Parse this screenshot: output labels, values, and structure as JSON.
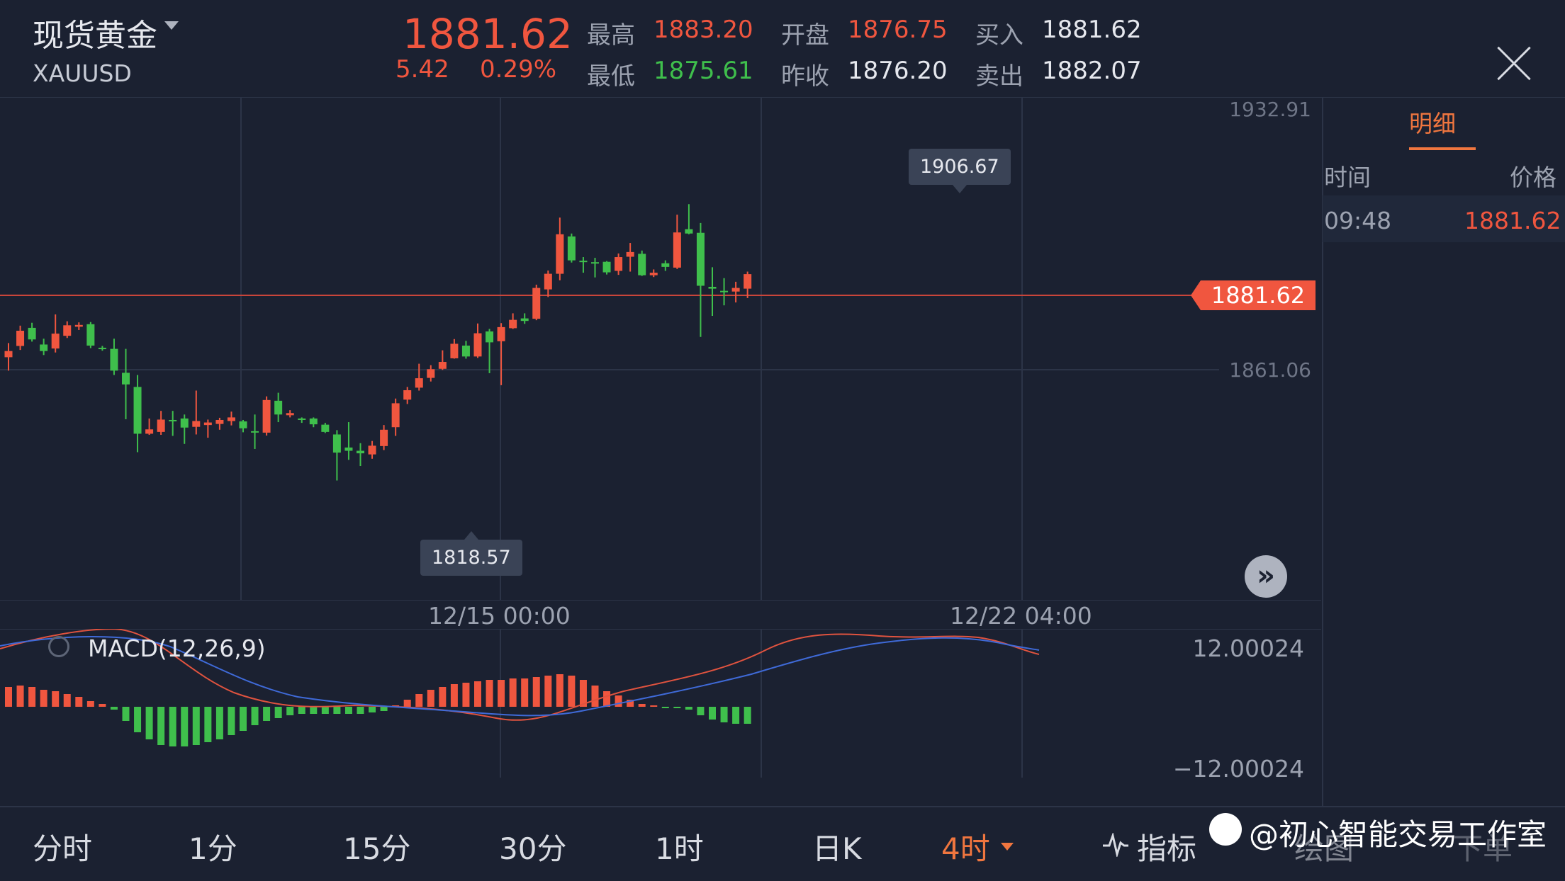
{
  "header": {
    "title": "现货黄金",
    "symbol": "XAUUSD",
    "price": "1881.62",
    "change": "5.42",
    "change_pct": "0.29%",
    "high_label": "最高",
    "high": "1883.20",
    "low_label": "最低",
    "low": "1875.61",
    "open_label": "开盘",
    "open": "1876.75",
    "prev_close_label": "昨收",
    "prev_close": "1876.20",
    "buy_label": "买入",
    "buy": "1881.62",
    "sell_label": "卖出",
    "sell": "1882.07"
  },
  "main_chart": {
    "y_top_label": "1932.91",
    "y_mid_label": "1861.06",
    "x_labels": [
      "12/15 00:00",
      "12/22 04:00"
    ],
    "max_tag": "1906.67",
    "min_tag": "1818.57",
    "current_price_tag": "1881.62"
  },
  "macd": {
    "label": "MACD(12,26,9)",
    "y_top": "12.00024",
    "y_bottom": "−12.00024"
  },
  "side_panel": {
    "tab": "明细",
    "col_time": "时间",
    "col_price": "价格",
    "rows": [
      {
        "time": "09:48",
        "price": "1881.62"
      }
    ]
  },
  "tabs": [
    "分时",
    "1分",
    "15分",
    "30分",
    "1时",
    "日K",
    "4时"
  ],
  "tools": {
    "indicator": "指标",
    "draw": "绘图",
    "order": "下单"
  },
  "watermark": "@初心智能交易工作室",
  "colors": {
    "up": "#f0563f",
    "down": "#3fbf4c",
    "bg": "#1b2131",
    "accent": "#f0763f"
  },
  "chart_data": {
    "type": "candlestick",
    "ylim": [
      1818.57,
      1932.91
    ],
    "candles": [
      [
        1864.5,
        1866.2,
        1860.8,
        1868.4
      ],
      [
        1867.6,
        1871.8,
        1866.5,
        1873.2
      ],
      [
        1872.6,
        1869.4,
        1868.8,
        1874.0
      ],
      [
        1868.0,
        1866.2,
        1865.1,
        1869.6
      ],
      [
        1866.9,
        1871.0,
        1865.8,
        1876.3
      ],
      [
        1870.4,
        1873.3,
        1869.8,
        1874.4
      ],
      [
        1872.9,
        1873.4,
        1872.0,
        1874.1
      ],
      [
        1873.6,
        1867.7,
        1867.0,
        1874.2
      ],
      [
        1867.1,
        1866.8,
        1866.3,
        1867.6
      ],
      [
        1866.8,
        1860.8,
        1859.6,
        1869.6
      ],
      [
        1860.2,
        1857.0,
        1847.4,
        1866.8
      ],
      [
        1856.3,
        1843.4,
        1838.3,
        1859.6
      ],
      [
        1843.4,
        1844.6,
        1843.1,
        1847.6
      ],
      [
        1843.9,
        1847.3,
        1843.1,
        1849.7
      ],
      [
        1847.2,
        1847.1,
        1842.8,
        1849.7
      ],
      [
        1847.6,
        1845.1,
        1840.6,
        1848.7
      ],
      [
        1845.3,
        1846.9,
        1843.2,
        1855.3
      ],
      [
        1845.8,
        1846.5,
        1842.3,
        1847.3
      ],
      [
        1846.1,
        1847.2,
        1844.5,
        1847.8
      ],
      [
        1846.9,
        1847.9,
        1845.7,
        1849.5
      ],
      [
        1846.8,
        1844.9,
        1843.8,
        1847.2
      ],
      [
        1844.1,
        1843.8,
        1839.2,
        1848.7
      ],
      [
        1843.7,
        1852.7,
        1842.9,
        1853.7
      ],
      [
        1852.5,
        1848.7,
        1846.6,
        1854.7
      ],
      [
        1848.5,
        1849.1,
        1847.9,
        1849.9
      ],
      [
        1847.6,
        1847.2,
        1846.4,
        1847.9
      ],
      [
        1847.6,
        1846.0,
        1845.2,
        1847.9
      ],
      [
        1845.9,
        1843.9,
        1843.6,
        1846.4
      ],
      [
        1843.2,
        1838.2,
        1830.5,
        1844.4
      ],
      [
        1839.6,
        1838.7,
        1836.2,
        1846.6
      ],
      [
        1838.7,
        1838.0,
        1834.5,
        1840.8
      ],
      [
        1837.7,
        1840.1,
        1836.5,
        1841.4
      ],
      [
        1840.0,
        1844.5,
        1838.9,
        1845.8
      ],
      [
        1845.2,
        1851.8,
        1842.8,
        1853.1
      ],
      [
        1852.8,
        1855.4,
        1851.6,
        1856.3
      ],
      [
        1856.1,
        1858.7,
        1855.3,
        1862.7
      ],
      [
        1858.8,
        1861.2,
        1857.8,
        1862.3
      ],
      [
        1861.3,
        1863.2,
        1861.0,
        1866.4
      ],
      [
        1864.2,
        1868.2,
        1864.1,
        1869.5
      ],
      [
        1867.7,
        1864.7,
        1864.1,
        1869.0
      ],
      [
        1864.7,
        1871.1,
        1864.3,
        1873.8
      ],
      [
        1871.6,
        1868.6,
        1860.1,
        1872.3
      ],
      [
        1868.9,
        1872.8,
        1856.8,
        1873.9
      ],
      [
        1872.5,
        1874.8,
        1872.3,
        1876.6
      ],
      [
        1875.2,
        1874.5,
        1873.7,
        1876.6
      ],
      [
        1875.1,
        1883.6,
        1874.7,
        1884.5
      ],
      [
        1883.2,
        1887.5,
        1881.1,
        1888.4
      ],
      [
        1887.5,
        1898.4,
        1885.7,
        1903.0
      ],
      [
        1897.8,
        1891.2,
        1890.6,
        1898.6
      ],
      [
        1891.1,
        1891.0,
        1887.8,
        1892.1
      ],
      [
        1890.7,
        1890.5,
        1886.5,
        1891.9
      ],
      [
        1890.8,
        1887.9,
        1887.3,
        1891.0
      ],
      [
        1888.3,
        1892.1,
        1887.2,
        1893.1
      ],
      [
        1892.2,
        1893.5,
        1888.1,
        1896.0
      ],
      [
        1893.0,
        1887.1,
        1886.9,
        1893.9
      ],
      [
        1887.1,
        1887.8,
        1886.6,
        1888.7
      ],
      [
        1890.4,
        1889.4,
        1888.3,
        1891.2
      ],
      [
        1889.2,
        1898.9,
        1888.8,
        1903.8
      ],
      [
        1899.8,
        1898.6,
        1898.4,
        1906.7
      ],
      [
        1898.8,
        1884.2,
        1870.1,
        1901.5
      ],
      [
        1883.9,
        1883.4,
        1875.9,
        1889.3
      ],
      [
        1882.8,
        1882.5,
        1878.8,
        1886.3
      ],
      [
        1882.6,
        1883.6,
        1879.6,
        1885.3
      ],
      [
        1883.4,
        1887.4,
        1880.8,
        1888.1
      ]
    ]
  }
}
